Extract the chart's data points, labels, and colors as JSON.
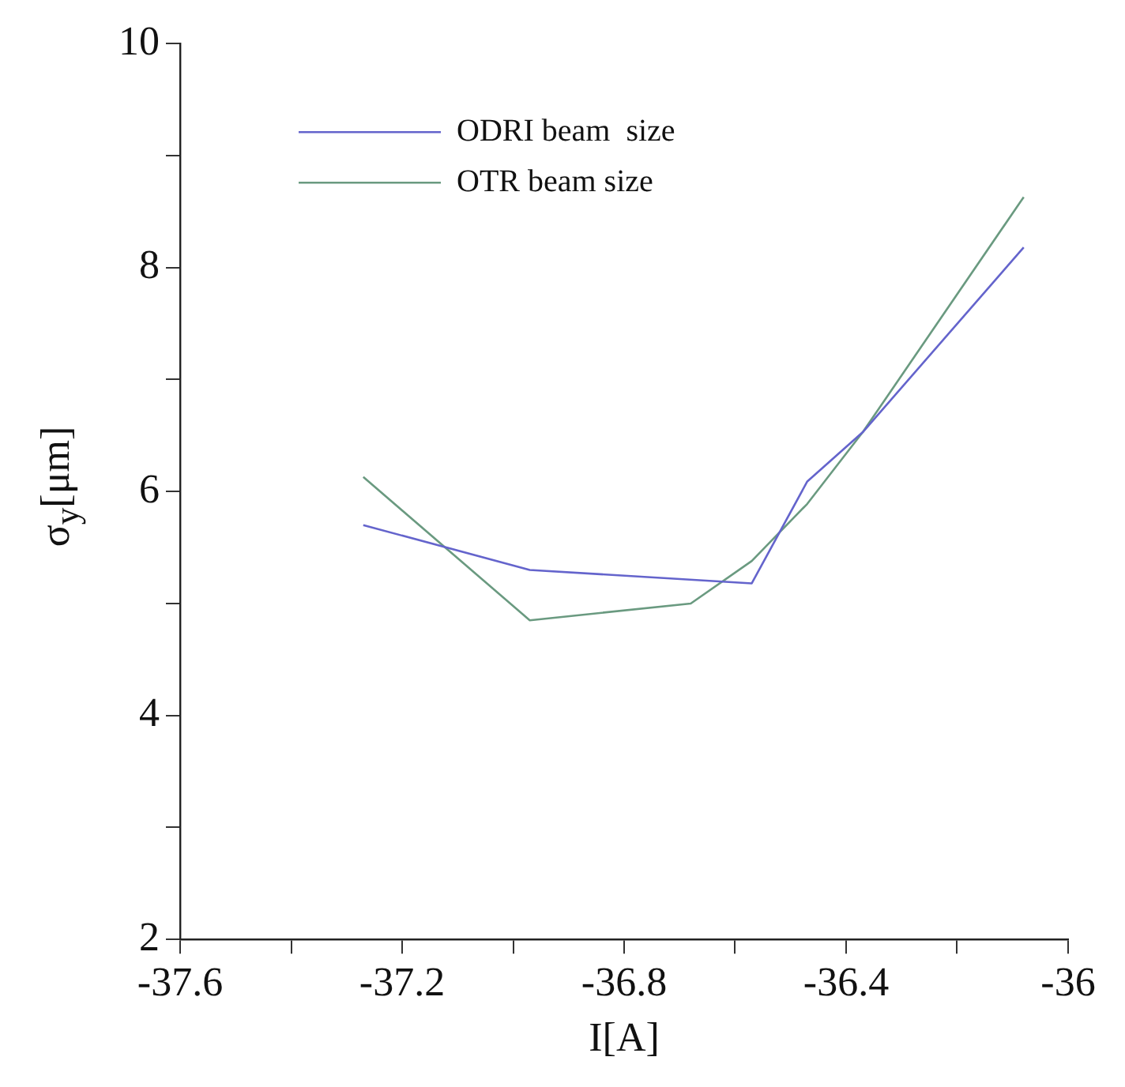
{
  "chart_data": {
    "type": "line",
    "xlabel": "I[A]",
    "ylabel": "σ$_{y}$[μm]",
    "xlim": [
      -37.6,
      -36
    ],
    "xticks": [
      -37.6,
      {
        "value": -37.4,
        "label": null
      },
      -37.2,
      {
        "value": -37,
        "label": null
      },
      -36.8,
      {
        "value": -36.6,
        "label": null
      },
      -36.4,
      {
        "value": -36.2,
        "label": null
      },
      -36
    ],
    "ylim": [
      2,
      10
    ],
    "yticks": [
      2,
      {
        "value": 3,
        "label": null
      },
      4,
      {
        "value": 5,
        "label": null
      },
      6,
      {
        "value": 7,
        "label": null
      },
      8,
      {
        "value": 9,
        "label": null
      },
      10
    ],
    "grid": false,
    "legend": "top left",
    "marker": "none",
    "line_style": "solid",
    "series": [
      {
        "name": "ODRI beam  size",
        "color": "#6464cc",
        "x": [
          -37.27,
          -36.97,
          -36.57,
          -36.47,
          -36.37,
          -36.08
        ],
        "values": [
          5.7,
          5.3,
          5.18,
          6.09,
          6.53,
          8.18
        ]
      },
      {
        "name": "OTR beam size",
        "color": "#6a9a80",
        "x": [
          -37.27,
          -36.97,
          -36.68,
          -36.57,
          -36.47,
          -36.37,
          -36.08
        ],
        "values": [
          6.13,
          4.85,
          5.0,
          5.38,
          5.89,
          6.53,
          8.63
        ]
      }
    ]
  }
}
